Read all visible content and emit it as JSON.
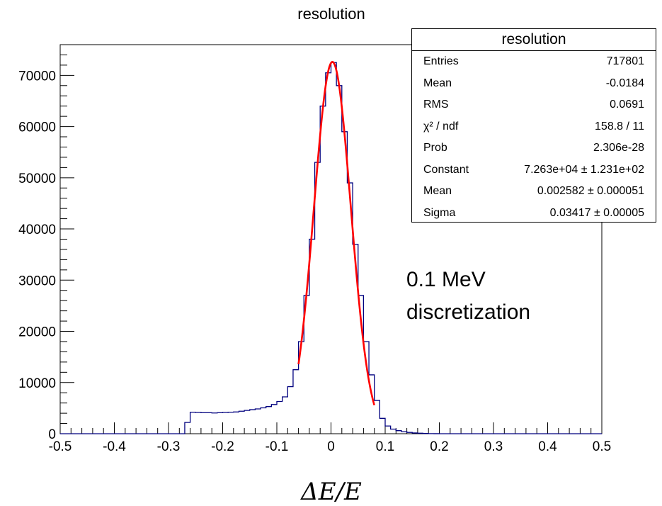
{
  "chart_data": {
    "type": "histogram",
    "title": "resolution",
    "xlabel": "ΔE/E",
    "ylabel": "",
    "xlim": [
      -0.5,
      0.5
    ],
    "ylim": [
      0,
      76000
    ],
    "xticks": [
      "-0.5",
      "-0.4",
      "-0.3",
      "-0.2",
      "-0.1",
      "0",
      "0.1",
      "0.2",
      "0.3",
      "0.4",
      "0.5"
    ],
    "yticks": [
      "0",
      "10000",
      "20000",
      "30000",
      "40000",
      "50000",
      "60000",
      "70000"
    ],
    "bin_width": 0.01,
    "bin_start": -0.5,
    "counts": [
      0,
      0,
      0,
      0,
      0,
      0,
      0,
      0,
      0,
      0,
      0,
      0,
      0,
      0,
      0,
      0,
      0,
      0,
      0,
      0,
      0,
      0,
      0,
      2200,
      4200,
      4150,
      4100,
      4100,
      4050,
      4100,
      4150,
      4200,
      4250,
      4400,
      4550,
      4700,
      4850,
      5050,
      5300,
      5700,
      6300,
      7200,
      9200,
      12500,
      18000,
      27000,
      38000,
      53000,
      64000,
      70500,
      72500,
      68000,
      59000,
      49000,
      37000,
      27000,
      18000,
      11500,
      6500,
      3000,
      1500,
      900,
      600,
      400,
      250,
      150,
      100,
      50,
      20,
      10,
      0,
      0,
      0,
      0,
      0,
      0,
      0,
      0,
      0,
      0,
      0,
      0,
      0,
      0,
      0,
      0,
      0,
      0,
      0,
      0,
      0,
      0,
      0,
      0,
      0,
      0,
      0,
      0,
      0,
      0
    ],
    "fit": {
      "type": "gaussian",
      "constant": 72630,
      "mean": 0.002582,
      "sigma": 0.03417,
      "range": [
        -0.06,
        0.08
      ]
    },
    "colors": {
      "histogram": "#00007f",
      "fit": "#ff0000",
      "axis": "#000000"
    }
  },
  "stats_box": {
    "title": "resolution",
    "rows": [
      {
        "key": "Entries",
        "value": "717801"
      },
      {
        "key": "Mean",
        "value": "-0.0184"
      },
      {
        "key": "RMS",
        "value": "0.0691"
      },
      {
        "key": "χ² / ndf",
        "value": "158.8 / 11"
      },
      {
        "key": "Prob",
        "value": "2.306e-28"
      },
      {
        "key": "Constant",
        "value": "7.263e+04 ± 1.231e+02"
      },
      {
        "key": "Mean",
        "value": "0.002582 ± 0.000051"
      },
      {
        "key": "Sigma",
        "value": "0.03417 ± 0.00005"
      }
    ]
  },
  "annotation": {
    "line1": "0.1 MeV",
    "line2": "discretization"
  }
}
